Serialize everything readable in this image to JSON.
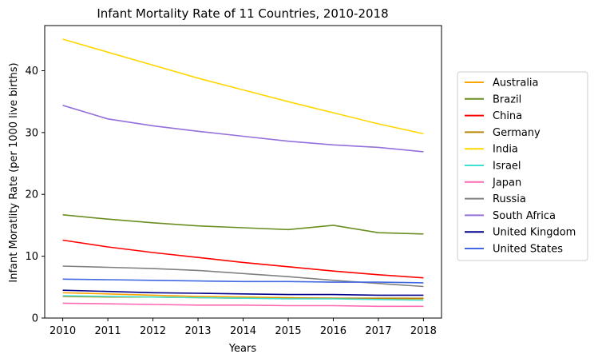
{
  "chart_data": {
    "type": "line",
    "title": "Infant Mortality Rate of 11 Countries, 2010-2018",
    "xlabel": "Years",
    "ylabel": "Infant Moratlity Rate (per 1000 live births)",
    "x": [
      2010,
      2011,
      2012,
      2013,
      2014,
      2015,
      2016,
      2017,
      2018
    ],
    "x_ticks": [
      "2010",
      "2011",
      "2012",
      "2013",
      "2014",
      "2015",
      "2016",
      "2017",
      "2018"
    ],
    "y_ticks": [
      "0",
      "10",
      "20",
      "30",
      "40"
    ],
    "xlim": [
      2009.6,
      2018.4
    ],
    "ylim": [
      0,
      47.3
    ],
    "grid": false,
    "legend": "right",
    "series": [
      {
        "name": "Australia",
        "color": "#ffa500",
        "values": [
          4.1,
          3.9,
          3.7,
          3.5,
          3.4,
          3.3,
          3.2,
          3.1,
          3.1
        ]
      },
      {
        "name": "Brazil",
        "color": "#6b8e23",
        "values": [
          16.7,
          16.0,
          15.4,
          14.9,
          14.6,
          14.3,
          15.0,
          13.8,
          13.6
        ]
      },
      {
        "name": "China",
        "color": "#ff0000",
        "values": [
          12.6,
          11.5,
          10.6,
          9.8,
          9.0,
          8.3,
          7.6,
          7.0,
          6.5
        ]
      },
      {
        "name": "Germany",
        "color": "#b8860b",
        "values": [
          3.5,
          3.4,
          3.4,
          3.3,
          3.2,
          3.2,
          3.2,
          3.2,
          3.2
        ]
      },
      {
        "name": "India",
        "color": "#ffd700",
        "values": [
          45.1,
          43.0,
          40.9,
          38.8,
          36.9,
          35.0,
          33.2,
          31.4,
          29.8
        ]
      },
      {
        "name": "Israel",
        "color": "#40e0d0",
        "values": [
          3.6,
          3.5,
          3.4,
          3.3,
          3.2,
          3.1,
          3.1,
          3.0,
          2.9
        ]
      },
      {
        "name": "Japan",
        "color": "#ff69b4",
        "values": [
          2.4,
          2.3,
          2.2,
          2.1,
          2.1,
          2.0,
          2.0,
          1.9,
          1.9
        ]
      },
      {
        "name": "Russia",
        "color": "#808080",
        "values": [
          8.4,
          8.2,
          8.0,
          7.7,
          7.2,
          6.7,
          6.1,
          5.6,
          5.1
        ]
      },
      {
        "name": "South Africa",
        "color": "#9370db",
        "values": [
          34.4,
          32.2,
          31.1,
          30.2,
          29.4,
          28.6,
          28.0,
          27.6,
          26.9
        ]
      },
      {
        "name": "United Kingdom",
        "color": "#00008b",
        "values": [
          4.5,
          4.3,
          4.1,
          4.0,
          3.9,
          3.8,
          3.8,
          3.7,
          3.7
        ]
      },
      {
        "name": "United States",
        "color": "#4169e1",
        "values": [
          6.3,
          6.2,
          6.1,
          6.0,
          5.9,
          5.9,
          5.8,
          5.8,
          5.7
        ]
      }
    ]
  }
}
